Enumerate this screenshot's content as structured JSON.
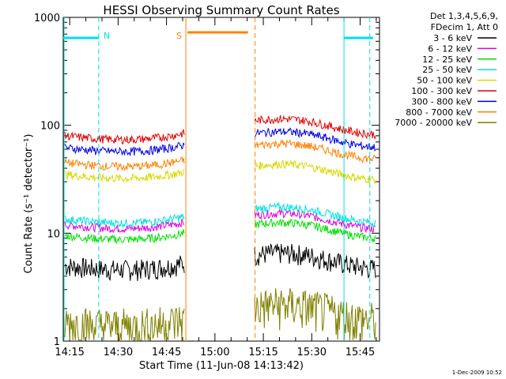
{
  "chart_data": {
    "type": "line",
    "title": "HESSI Observing Summary Count Rates",
    "xlabel": "Start Time (11-Jun-08 14:13:42)",
    "ylabel": "Count Rate (s⁻¹ detector⁻¹)",
    "y_scale": "log",
    "ylim": [
      1,
      1000
    ],
    "xlim_minutes": [
      "14:13",
      "15:51"
    ],
    "x_ticks": [
      "14:15",
      "14:30",
      "14:45",
      "15:00",
      "15:15",
      "15:30",
      "15:45"
    ],
    "y_ticks": [
      "1",
      "10",
      "100",
      "1000"
    ],
    "legend_header": [
      "Det 1,3,4,5,6,9,",
      "FDecim 1, Att 0"
    ],
    "legend_position": "outside-right",
    "series": [
      {
        "name": "3 - 6 keV",
        "color": "#000000",
        "before_gap": 5.0,
        "after_gap": 6.0
      },
      {
        "name": "6 - 12 keV",
        "color": "#e000e0",
        "before_gap": 12.0,
        "after_gap": 14.0
      },
      {
        "name": "12 - 25 keV",
        "color": "#00e000",
        "before_gap": 9.5,
        "after_gap": 11.5
      },
      {
        "name": "25 - 50 keV",
        "color": "#00e0e0",
        "before_gap": 13.5,
        "after_gap": 16.0
      },
      {
        "name": "50 - 100 keV",
        "color": "#d8d800",
        "before_gap": 35,
        "after_gap": 40
      },
      {
        "name": "100 - 300 keV",
        "color": "#e00000",
        "before_gap": 80,
        "after_gap": 105
      },
      {
        "name": "300 - 800 keV",
        "color": "#0000e0",
        "before_gap": 62,
        "after_gap": 80
      },
      {
        "name": "800 - 7000 keV",
        "color": "#ff8000",
        "before_gap": 45,
        "after_gap": 62
      },
      {
        "name": "7000 - 20000 keV",
        "color": "#808000",
        "before_gap": 1.5,
        "after_gap": 2.0
      }
    ],
    "gap_start": "14:51",
    "gap_end": "15:12",
    "annotations": [
      {
        "label": "N",
        "color": "#00e0e0",
        "at": "14:24"
      },
      {
        "label": "S",
        "color": "#ff8000",
        "at": "14:51"
      }
    ],
    "night_intervals": [
      [
        "14:13",
        "14:24"
      ],
      [
        "15:40",
        "15:49"
      ]
    ],
    "saa_interval": [
      "14:51",
      "15:10"
    ]
  },
  "footer": {
    "timestamp": "1-Dec-2009 10:52"
  }
}
